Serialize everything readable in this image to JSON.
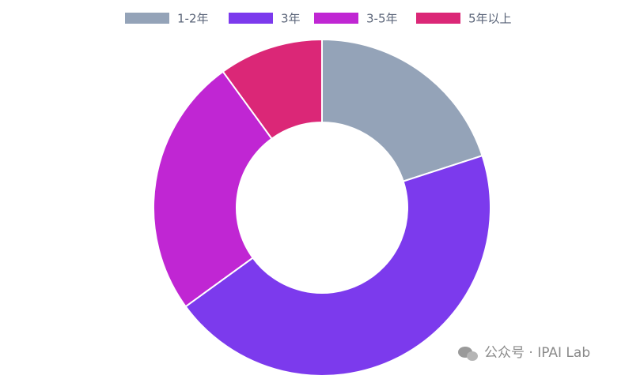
{
  "chart_data": {
    "type": "donut",
    "categories": [
      "1-2年",
      "3年",
      "3-5年",
      "5年以上"
    ],
    "values": [
      20,
      45,
      25,
      10
    ],
    "colors": [
      "#94a3b8",
      "#7c3aed",
      "#c026d3",
      "#db2777"
    ],
    "legend": "top"
  },
  "watermark": "公众号 · IPAI Lab"
}
